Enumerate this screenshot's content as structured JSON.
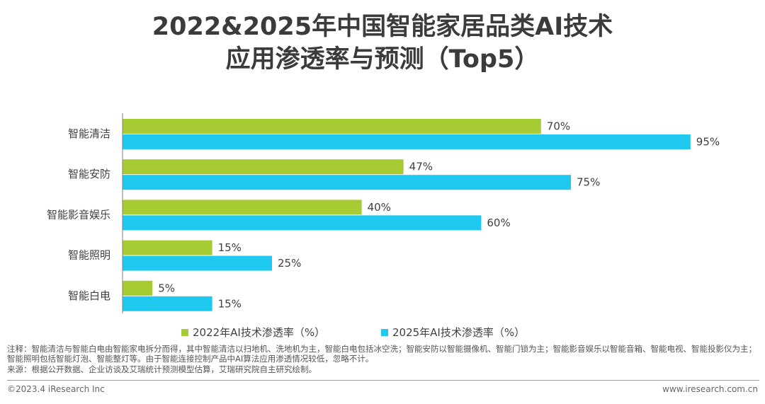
{
  "title": {
    "line1": "2022&2025年中国智能家居品类AI技术",
    "line2": "应用渗透率与预测（Top5）"
  },
  "colors": {
    "s2022": "#a7cc33",
    "s2025": "#1ec8ef",
    "axis": "#7f7f7f"
  },
  "chart_data": {
    "type": "bar",
    "orientation": "horizontal",
    "categories": [
      "智能清洁",
      "智能安防",
      "智能影音娱乐",
      "智能照明",
      "智能白电"
    ],
    "series": [
      {
        "name": "2022年AI技术渗透率（%）",
        "values": [
          70,
          47,
          40,
          15,
          5
        ],
        "labels": [
          "70%",
          "47%",
          "40%",
          "15%",
          "5%"
        ]
      },
      {
        "name": "2025年AI技术渗透率（%）",
        "values": [
          95,
          75,
          60,
          25,
          15
        ],
        "labels": [
          "95%",
          "75%",
          "60%",
          "25%",
          "15%"
        ]
      }
    ],
    "xlim": [
      0,
      100
    ],
    "legend_position": "bottom"
  },
  "notes": {
    "note": "注释：智能清洁与智能白电由智能家电拆分而得，其中智能清洁以扫地机、洗地机为主，智能白电包括冰空洗；智能安防以智能摄像机、智能门锁为主；智能影音娱乐以智能音箱、智能电视、智能投影仪为主；智能照明包括智能灯泡、智能整灯等。由于智能连接控制产品中AI算法应用渗透情况较低，忽略不计。",
    "source": "来源：根据公开数据、企业访谈及艾瑞统计预测模型估算，艾瑞研究院自主研究绘制。"
  },
  "footer": {
    "left": "©2023.4 iResearch Inc",
    "right": "www.iresearch.com.cn"
  }
}
